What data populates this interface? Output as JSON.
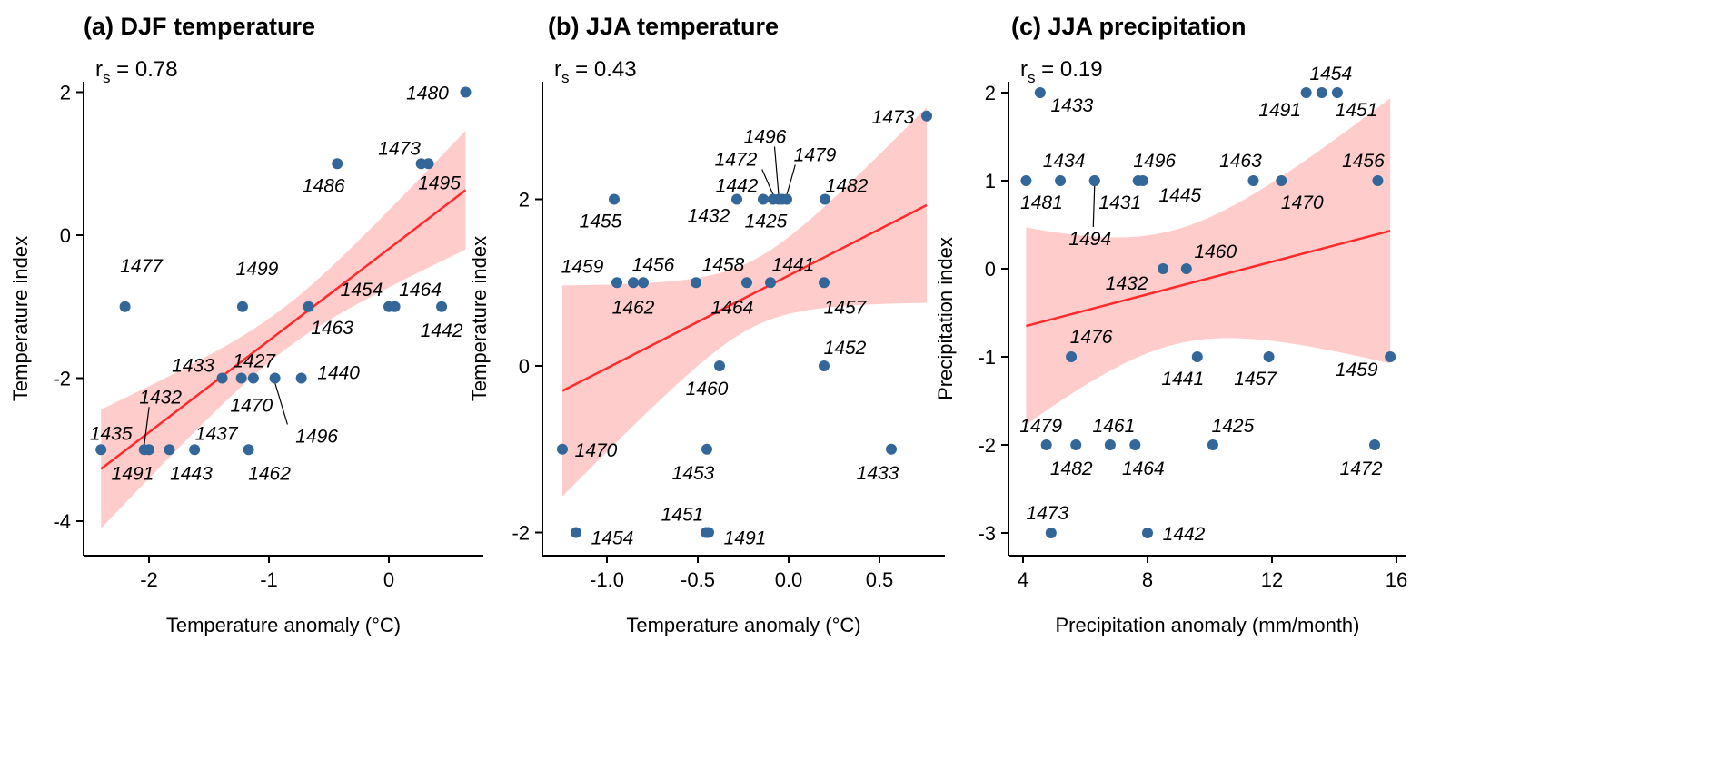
{
  "colors": {
    "point": "#336699",
    "fit_line": "#ff2a2a",
    "ci_band": "#ffcccc",
    "axis": "#000000"
  },
  "chart_data": [
    {
      "type": "scatter",
      "title": "(a) DJF temperature",
      "rs_symbol": "r",
      "rs_sub": "s",
      "rs_text": " = 0.78",
      "xlabel": "Temperature anomaly (°C)",
      "ylabel": "Temperature index",
      "xlim": [
        -2.45,
        0.7
      ],
      "ylim": [
        -4.4,
        2.3
      ],
      "xticks": [
        -2,
        -1,
        0
      ],
      "xtick_labels": [
        "-2",
        "-1",
        "0"
      ],
      "yticks": [
        -4,
        -2,
        0,
        2
      ],
      "ytick_labels": [
        "-4",
        "-2",
        "0",
        "2"
      ],
      "points": [
        {
          "x": 0.64,
          "y": 2,
          "label": "1480"
        },
        {
          "x": -0.43,
          "y": 1,
          "label": "1486"
        },
        {
          "x": 0.27,
          "y": 1,
          "label": "1473"
        },
        {
          "x": 0.33,
          "y": 1,
          "label": "1495"
        },
        {
          "x": -2.2,
          "y": -1,
          "label": "1477"
        },
        {
          "x": -1.22,
          "y": -1,
          "label": "1499"
        },
        {
          "x": -0.67,
          "y": -1,
          "label": "1463"
        },
        {
          "x": 0.0,
          "y": -1,
          "label": "1454"
        },
        {
          "x": 0.05,
          "y": -1,
          "label": "1464"
        },
        {
          "x": 0.44,
          "y": -1,
          "label": "1442"
        },
        {
          "x": -1.39,
          "y": -2,
          "label": "1433"
        },
        {
          "x": -1.23,
          "y": -2,
          "label": "1427"
        },
        {
          "x": -1.13,
          "y": -2,
          "label": "1470"
        },
        {
          "x": -0.95,
          "y": -2,
          "label": "1496"
        },
        {
          "x": -0.73,
          "y": -2,
          "label": "1440"
        },
        {
          "x": -2.4,
          "y": -3,
          "label": "1435"
        },
        {
          "x": -2.04,
          "y": -3,
          "label": "1432"
        },
        {
          "x": -2.0,
          "y": -3,
          "label": "1491"
        },
        {
          "x": -1.83,
          "y": -3,
          "label": "1443"
        },
        {
          "x": -1.62,
          "y": -3,
          "label": "1437"
        },
        {
          "x": -1.17,
          "y": -3,
          "label": "1462"
        }
      ],
      "fit": {
        "x0": -2.4,
        "y0": -3.27,
        "x1": 0.64,
        "y1": 0.63
      },
      "ci": {
        "center_x": -0.88,
        "min_halfwidth": 0.3,
        "slope_term": 0.51
      }
    },
    {
      "type": "scatter",
      "title": "(b) JJA temperature",
      "rs_symbol": "r",
      "rs_sub": "s",
      "rs_text": " = 0.43",
      "xlabel": "Temperature anomaly (°C)",
      "ylabel": "Temperature index",
      "xlim": [
        -1.3,
        0.86
      ],
      "ylim": [
        -2.5,
        3.4
      ],
      "xticks": [
        -1.0,
        -0.5,
        0.0,
        0.5
      ],
      "xtick_labels": [
        "-1.0",
        "-0.5",
        "0.0",
        "0.5"
      ],
      "yticks": [
        -2,
        0,
        2
      ],
      "ytick_labels": [
        "-2",
        "0",
        "2"
      ],
      "points": [
        {
          "x": 0.76,
          "y": 3,
          "label": "1473"
        },
        {
          "x": -0.96,
          "y": 2,
          "label": "1455"
        },
        {
          "x": -0.285,
          "y": 2,
          "label": "1432"
        },
        {
          "x": -0.14,
          "y": 2,
          "label": "1442"
        },
        {
          "x": -0.085,
          "y": 2,
          "label": "1472"
        },
        {
          "x": -0.055,
          "y": 2,
          "label": "1496"
        },
        {
          "x": -0.035,
          "y": 2,
          "label": "1425"
        },
        {
          "x": -0.01,
          "y": 2,
          "label": "1479"
        },
        {
          "x": 0.2,
          "y": 2,
          "label": "1482"
        },
        {
          "x": -0.945,
          "y": 1,
          "label": "1459"
        },
        {
          "x": -0.855,
          "y": 1,
          "label": "1462"
        },
        {
          "x": -0.8,
          "y": 1,
          "label": "1456"
        },
        {
          "x": -0.51,
          "y": 1,
          "label": "1458"
        },
        {
          "x": -0.23,
          "y": 1,
          "label": "1464"
        },
        {
          "x": -0.1,
          "y": 1,
          "label": "1441"
        },
        {
          "x": 0.195,
          "y": 1,
          "label": "1457"
        },
        {
          "x": -0.38,
          "y": 0,
          "label": "1460"
        },
        {
          "x": 0.195,
          "y": 0,
          "label": "1452"
        },
        {
          "x": -1.245,
          "y": -1,
          "label": "1470"
        },
        {
          "x": -0.45,
          "y": -1,
          "label": "1453"
        },
        {
          "x": 0.565,
          "y": -1,
          "label": "1433"
        },
        {
          "x": -1.17,
          "y": -2,
          "label": "1454"
        },
        {
          "x": -0.455,
          "y": -2,
          "label": "1451"
        },
        {
          "x": -0.44,
          "y": -2,
          "label": "1491"
        }
      ],
      "fit": {
        "x0": -1.245,
        "y0": -0.3,
        "x1": 0.76,
        "y1": 1.93
      },
      "ci": {
        "center_x": -0.2,
        "min_halfwidth": 0.4,
        "slope_term": 1.15
      }
    },
    {
      "type": "scatter",
      "title": "(c) JJA precipitation",
      "rs_symbol": "r",
      "rs_sub": "s",
      "rs_text": " = 0.19",
      "xlabel": "Precipitation anomaly (mm/month)",
      "ylabel": "Precipitation index",
      "xlim": [
        3.5,
        16.3
      ],
      "ylim": [
        -3.3,
        2.4
      ],
      "xticks": [
        4,
        8,
        12,
        16
      ],
      "xtick_labels": [
        "4",
        "8",
        "12",
        "16"
      ],
      "yticks": [
        -3,
        -2,
        -1,
        0,
        1,
        2
      ],
      "ytick_labels": [
        "-3",
        "-2",
        "-1",
        "0",
        "1",
        "2"
      ],
      "points": [
        {
          "x": 4.55,
          "y": 2,
          "label": "1433"
        },
        {
          "x": 13.1,
          "y": 2,
          "label": "1491"
        },
        {
          "x": 13.6,
          "y": 2,
          "label": "1454"
        },
        {
          "x": 14.1,
          "y": 2,
          "label": "1451"
        },
        {
          "x": 4.1,
          "y": 1,
          "label": "1481"
        },
        {
          "x": 5.2,
          "y": 1,
          "label": "1434"
        },
        {
          "x": 6.3,
          "y": 1,
          "label": "1431"
        },
        {
          "x": 6.3,
          "y": 1,
          "label": "1494"
        },
        {
          "x": 7.7,
          "y": 1,
          "label": "1496"
        },
        {
          "x": 7.85,
          "y": 1,
          "label": "1445"
        },
        {
          "x": 11.4,
          "y": 1,
          "label": "1463"
        },
        {
          "x": 12.3,
          "y": 1,
          "label": "1470"
        },
        {
          "x": 15.4,
          "y": 1,
          "label": "1456"
        },
        {
          "x": 8.5,
          "y": 0,
          "label": "1432"
        },
        {
          "x": 9.25,
          "y": 0,
          "label": "1460"
        },
        {
          "x": 5.55,
          "y": -1,
          "label": "1476"
        },
        {
          "x": 9.6,
          "y": -1,
          "label": "1441"
        },
        {
          "x": 11.9,
          "y": -1,
          "label": "1457"
        },
        {
          "x": 15.8,
          "y": -1,
          "label": "1459"
        },
        {
          "x": 4.75,
          "y": -2,
          "label": "1479"
        },
        {
          "x": 5.7,
          "y": -2,
          "label": "1482"
        },
        {
          "x": 6.8,
          "y": -2,
          "label": "1461"
        },
        {
          "x": 7.6,
          "y": -2,
          "label": "1464"
        },
        {
          "x": 10.1,
          "y": -2,
          "label": "1425"
        },
        {
          "x": 15.3,
          "y": -2,
          "label": "1472"
        },
        {
          "x": 4.9,
          "y": -3,
          "label": "1473"
        },
        {
          "x": 8.0,
          "y": -3,
          "label": "1442"
        }
      ],
      "fit": {
        "x0": 4.1,
        "y0": -0.65,
        "x1": 15.8,
        "y1": 0.43
      },
      "ci": {
        "center_x": 8.8,
        "min_halfwidth": 0.65,
        "slope_term": 0.194
      }
    }
  ]
}
